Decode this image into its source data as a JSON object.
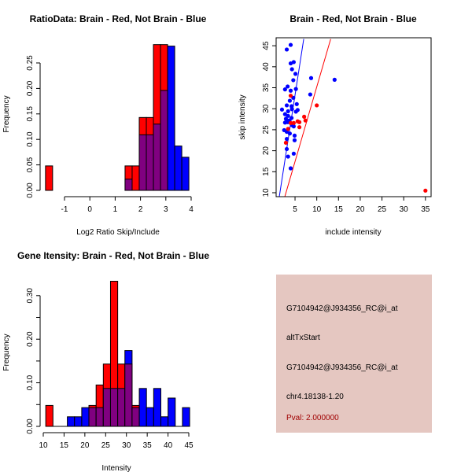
{
  "colors": {
    "red": "#ff0000",
    "blue": "#0000ff",
    "overlap": "#800080",
    "panel_bg": "#e5c7c1",
    "pval": "#a00000"
  },
  "chart_data": [
    {
      "type": "bar",
      "title": "RatioData: Brain - Red, Not Brain - Blue",
      "xlabel": "Log2 Ratio Skip/Include",
      "ylabel": "Frequency",
      "xticks": [
        -1,
        0,
        1,
        2,
        3,
        4
      ],
      "yticks": [
        "0.00",
        "0.05",
        "0.10",
        "0.15",
        "0.20",
        "0.25"
      ],
      "bin_width": 0.28,
      "bins": [
        -1.75,
        1.39,
        1.67,
        1.95,
        2.23,
        2.51,
        2.79,
        3.07,
        3.35,
        3.63
      ],
      "series": [
        {
          "name": "Brain",
          "color": "red",
          "values": [
            0.048,
            0.048,
            0.048,
            0.143,
            0.143,
            0.286,
            0.286,
            0,
            0,
            0
          ]
        },
        {
          "name": "Not Brain",
          "color": "blue",
          "values": [
            0,
            0.022,
            0,
            0.109,
            0.109,
            0.13,
            0.196,
            0.283,
            0.087,
            0.065
          ]
        }
      ]
    },
    {
      "type": "scatter",
      "title": "Brain - Red, Not Brain - Blue",
      "xlabel": "include intensity",
      "ylabel": "skip intensity",
      "xlim": [
        0.65,
        36.3
      ],
      "ylim": [
        9.06,
        46.9
      ],
      "xticks": [
        5,
        10,
        15,
        20,
        25,
        30,
        35
      ],
      "yticks": [
        10,
        15,
        20,
        25,
        30,
        35,
        40,
        45
      ],
      "series": [
        {
          "name": "Not Brain",
          "color": "blue",
          "points": [
            [
              4.0,
              45.2
            ],
            [
              3.1,
              44.1
            ],
            [
              4.7,
              41.1
            ],
            [
              4.0,
              40.8
            ],
            [
              4.3,
              39.4
            ],
            [
              5.1,
              38.3
            ],
            [
              4.6,
              36.8
            ],
            [
              8.7,
              37.3
            ],
            [
              14.1,
              36.9
            ],
            [
              3.3,
              35.3
            ],
            [
              2.7,
              34.6
            ],
            [
              4.0,
              34.3
            ],
            [
              5.2,
              34.7
            ],
            [
              8.5,
              33.4
            ],
            [
              4.6,
              32.6
            ],
            [
              3.8,
              31.9
            ],
            [
              5.4,
              31.1
            ],
            [
              2.0,
              29.8
            ],
            [
              3.1,
              30.8
            ],
            [
              4.2,
              30.6
            ],
            [
              4.3,
              29.9
            ],
            [
              5.2,
              29.3
            ],
            [
              5.6,
              29.7
            ],
            [
              3.4,
              29.4
            ],
            [
              2.7,
              28.7
            ],
            [
              3.4,
              28.3
            ],
            [
              2.9,
              27.6
            ],
            [
              4.2,
              27.8
            ],
            [
              3.6,
              27.2
            ],
            [
              2.7,
              26.7
            ],
            [
              3.3,
              26.8
            ],
            [
              4.3,
              26.1
            ],
            [
              4.7,
              25.8
            ],
            [
              2.5,
              24.9
            ],
            [
              3.1,
              24.5
            ],
            [
              3.8,
              24.1
            ],
            [
              4.9,
              23.6
            ],
            [
              3.1,
              22.8
            ],
            [
              4.9,
              22.5
            ],
            [
              3.1,
              20.4
            ],
            [
              3.4,
              18.6
            ],
            [
              4.7,
              19.3
            ],
            [
              4.0,
              15.8
            ]
          ]
        },
        {
          "name": "Brain",
          "color": "red",
          "points": [
            [
              4.0,
              33.1
            ],
            [
              10.0,
              30.8
            ],
            [
              7.1,
              28.1
            ],
            [
              7.4,
              27.2
            ],
            [
              5.6,
              27.0
            ],
            [
              6.0,
              26.8
            ],
            [
              4.7,
              26.6
            ],
            [
              4.0,
              26.6
            ],
            [
              3.4,
              25.2
            ],
            [
              6.0,
              25.6
            ],
            [
              2.9,
              21.9
            ],
            [
              35.0,
              10.5
            ]
          ]
        }
      ],
      "lines": [
        {
          "color": "blue",
          "from": [
            1.38,
            9.06
          ],
          "to": [
            7.0,
            46.6
          ]
        },
        {
          "color": "red",
          "from": [
            2.65,
            9.06
          ],
          "to": [
            13.2,
            46.6
          ]
        }
      ]
    },
    {
      "type": "bar",
      "title": "Gene Itensity: Brain - Red, Not Brain - Blue",
      "xlabel": "Intensity",
      "ylabel": "Frequency",
      "xticks": [
        10,
        15,
        20,
        25,
        30,
        35,
        40,
        45
      ],
      "yticks": [
        "0.00",
        "",
        "0.10",
        "",
        "0.20",
        "",
        "0.30"
      ],
      "bin_width": 1.73,
      "bins": [
        10.6,
        12.33,
        14.06,
        15.79,
        17.52,
        19.25,
        20.98,
        22.71,
        24.44,
        26.17,
        27.9,
        29.63,
        31.36,
        33.09,
        34.82,
        36.55,
        38.28,
        40.01,
        41.74,
        43.47
      ],
      "series": [
        {
          "name": "Brain",
          "color": "red",
          "values": [
            0.048,
            0,
            0,
            0,
            0,
            0,
            0.048,
            0.095,
            0.143,
            0.333,
            0.143,
            0.143,
            0.048,
            0,
            0,
            0,
            0,
            0,
            0,
            0
          ]
        },
        {
          "name": "Not Brain",
          "color": "blue",
          "values": [
            0,
            0,
            0,
            0.022,
            0.022,
            0.043,
            0.043,
            0.043,
            0.087,
            0.087,
            0.087,
            0.174,
            0.043,
            0.087,
            0.043,
            0.087,
            0.022,
            0.065,
            0,
            0.043
          ]
        }
      ]
    }
  ],
  "info_panel": {
    "lines": [
      "G7104942@J934356_RC@i_at",
      "altTxStart",
      "G7104942@J934356_RC@i_at",
      "chr4.18138-1.20"
    ],
    "pval": "Pval: 2.000000"
  }
}
